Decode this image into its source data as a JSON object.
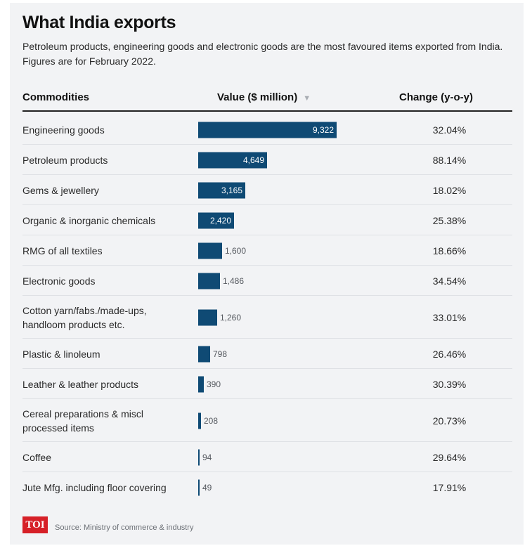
{
  "title": "What India exports",
  "subtitle": "Petroleum products, engineering goods and electronic goods are the most favoured items exported from India. Figures are for February 2022.",
  "headers": {
    "commodity": "Commodities",
    "value": "Value ($ million)",
    "change": "Change (y-o-y)"
  },
  "icons": {
    "sort": "sort-down-icon"
  },
  "colors": {
    "bar": "#0f4a74",
    "background": "#f2f3f5",
    "logo": "#d62027"
  },
  "chart_data": {
    "type": "bar",
    "orientation": "horizontal",
    "categories": [
      "Engineering goods",
      "Petroleum products",
      "Gems & jewellery",
      "Organic & inorganic chemicals",
      "RMG of all textiles",
      "Electronic goods",
      "Cotton yarn/fabs./made-ups, handloom products etc.",
      "Plastic & linoleum",
      "Leather & leather products",
      "Cereal preparations & miscl processed items",
      "Coffee",
      "Jute Mfg. including floor covering"
    ],
    "values": [
      9322,
      4649,
      3165,
      2420,
      1600,
      1486,
      1260,
      798,
      390,
      208,
      94,
      49
    ],
    "value_labels": [
      "9,322",
      "4,649",
      "3,165",
      "2,420",
      "1,600",
      "1,486",
      "1,260",
      "798",
      "390",
      "208",
      "94",
      "49"
    ],
    "changes": [
      "32.04%",
      "88.14%",
      "18.02%",
      "25.38%",
      "18.66%",
      "34.54%",
      "33.01%",
      "26.46%",
      "30.39%",
      "20.73%",
      "29.64%",
      "17.91%"
    ],
    "title": "What India exports",
    "xlabel": "Value ($ million)",
    "ylabel": "Commodities",
    "xlim": [
      0,
      9322
    ],
    "grid": false,
    "legend": "none"
  },
  "footer": {
    "logo_text": "TOI",
    "source": "Source: Ministry of commerce & industry"
  }
}
